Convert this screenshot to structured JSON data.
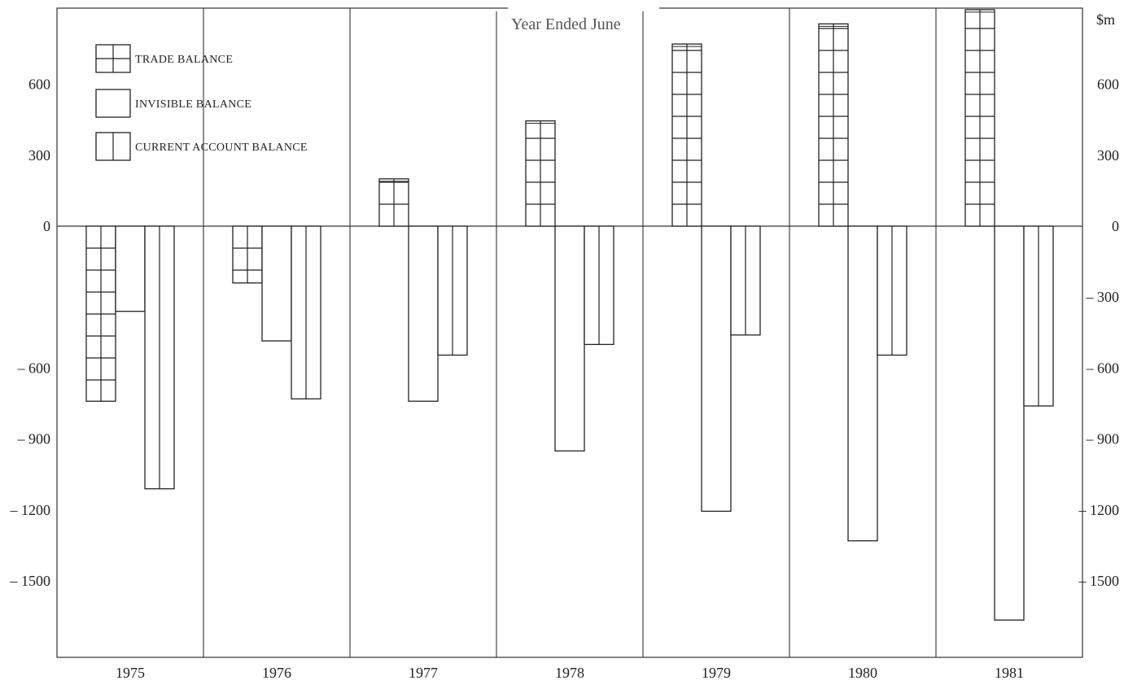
{
  "chart_data": {
    "type": "bar",
    "title": "Year Ended June",
    "unit_label": "$m",
    "categories": [
      "1975",
      "1976",
      "1977",
      "1978",
      "1979",
      "1980",
      "1981"
    ],
    "series": [
      {
        "name": "TRADE BALANCE",
        "pattern": "grid",
        "values": [
          -740,
          -240,
          200,
          445,
          770,
          855,
          915
        ]
      },
      {
        "name": "INVISIBLE BALANCE",
        "pattern": "plain",
        "values": [
          -360,
          -485,
          -740,
          -950,
          -1205,
          -1330,
          -1665
        ]
      },
      {
        "name": "CURRENT ACCOUNT BALANCE",
        "pattern": "vertical",
        "values": [
          -1110,
          -730,
          -545,
          -500,
          -460,
          -545,
          -760
        ]
      }
    ],
    "ylim": [
      -1850,
      930
    ],
    "yticks_left": [
      "600",
      "300",
      "0",
      "– 600",
      "– 900",
      "– 1200",
      "– 1500"
    ],
    "yticks_left_values": [
      600,
      300,
      0,
      -600,
      -900,
      -1200,
      -1500
    ],
    "yticks_right": [
      "600",
      "300",
      "0",
      "– 300",
      "– 600",
      "– 900",
      "– 1200",
      "– 1500"
    ],
    "yticks_right_values": [
      600,
      300,
      0,
      -300,
      -600,
      -900,
      -1200,
      -1500
    ],
    "legend_position": "top-left",
    "grid": false
  }
}
